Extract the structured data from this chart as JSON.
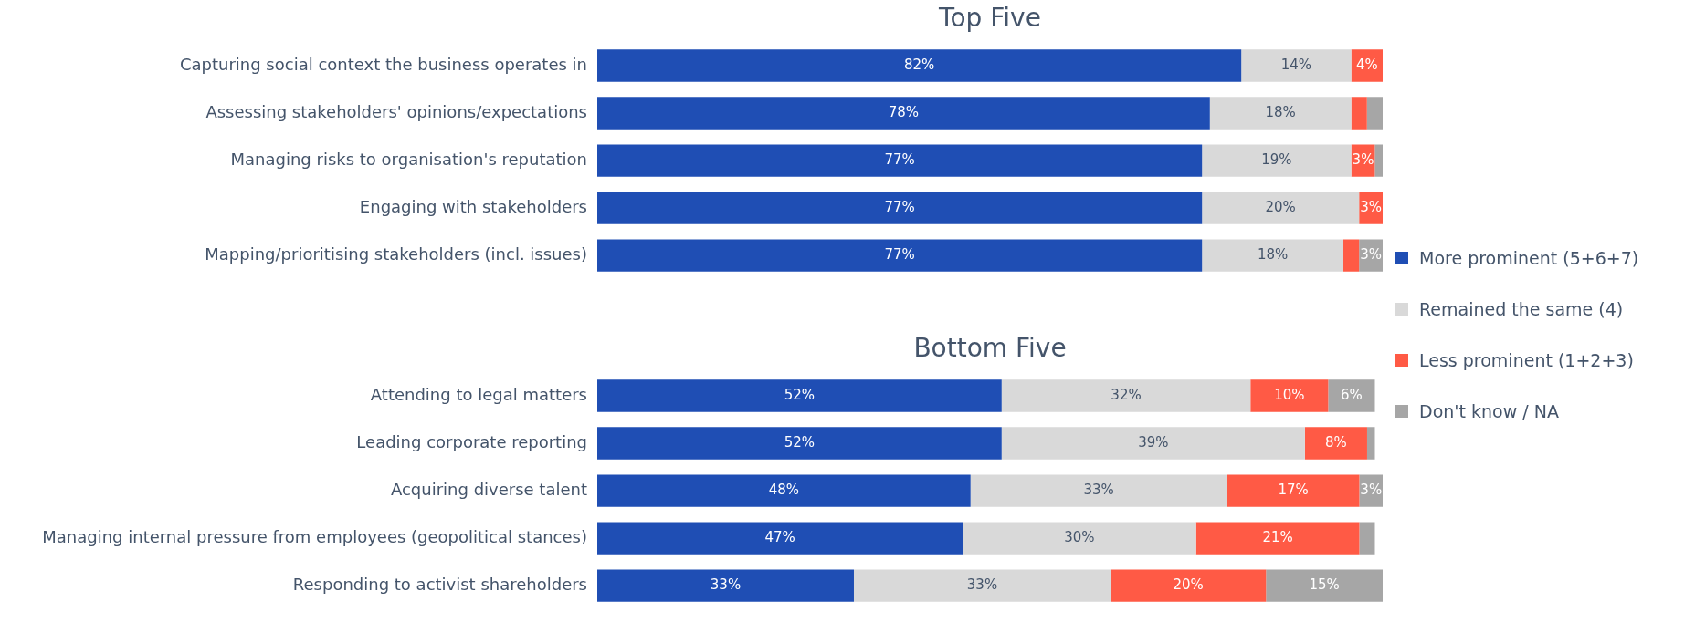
{
  "chart_data": [
    {
      "type": "bar",
      "title": "Top Five",
      "orientation": "horizontal",
      "stacked": true,
      "legend": "right",
      "categories": [
        "Capturing social context the business operates in",
        "Assessing stakeholders' opinions/expectations",
        "Managing risks to organisation's reputation",
        "Engaging with stakeholders",
        "Mapping/prioritising stakeholders (incl. issues)"
      ],
      "series": [
        {
          "name": "More prominent (5+6+7)",
          "color": "#1f4eb4",
          "values": [
            82,
            78,
            77,
            77,
            77
          ],
          "value_labels": [
            "82%",
            "78%",
            "77%",
            "77%",
            "77%"
          ]
        },
        {
          "name": "Remained the same (4)",
          "color": "#d9d9d9",
          "values": [
            14,
            18,
            19,
            20,
            18
          ],
          "value_labels": [
            "14%",
            "18%",
            "19%",
            "20%",
            "18%"
          ]
        },
        {
          "name": "Less prominent (1+2+3)",
          "color": "#ff5a45",
          "values": [
            4,
            2,
            3,
            3,
            2
          ],
          "value_labels": [
            "4%",
            null,
            "3%",
            "3%",
            null
          ]
        },
        {
          "name": "Don't know / NA",
          "color": "#a6a6a6",
          "values": [
            0,
            2,
            1,
            0,
            3
          ],
          "value_labels": [
            null,
            null,
            null,
            null,
            "3%"
          ]
        }
      ]
    },
    {
      "type": "bar",
      "title": "Bottom Five",
      "orientation": "horizontal",
      "stacked": true,
      "categories": [
        "Attending to legal matters",
        "Leading corporate reporting",
        "Acquiring diverse talent",
        "Managing internal pressure from employees (geopolitical stances)",
        "Responding to activist shareholders"
      ],
      "series": [
        {
          "color": "#1f4eb4",
          "values": [
            52,
            52,
            48,
            47,
            33
          ],
          "value_labels": [
            "52%",
            "52%",
            "48%",
            "47%",
            "33%"
          ]
        },
        {
          "color": "#d9d9d9",
          "values": [
            32,
            39,
            33,
            30,
            33
          ],
          "value_labels": [
            "32%",
            "39%",
            "33%",
            "30%",
            "33%"
          ]
        },
        {
          "color": "#ff5a45",
          "values": [
            10,
            8,
            17,
            21,
            20
          ],
          "value_labels": [
            "10%",
            "8%",
            "17%",
            "21%",
            "20%"
          ]
        },
        {
          "color": "#a6a6a6",
          "values": [
            6,
            1,
            3,
            2,
            15
          ],
          "value_labels": [
            "6%",
            null,
            "3%",
            null,
            "15%"
          ]
        }
      ]
    }
  ]
}
